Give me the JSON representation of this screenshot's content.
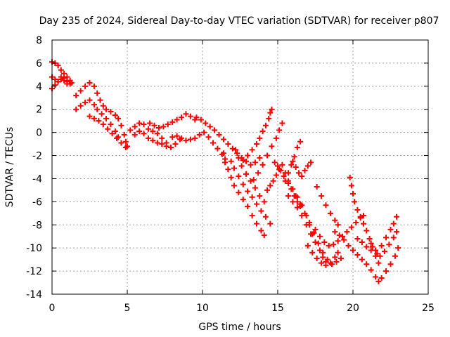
{
  "chart_data": {
    "type": "scatter",
    "title": "Day 235 of 2024, Sidereal Day-to-day VTEC variation (SDTVAR) for receiver p807",
    "xlabel": "GPS time / hours",
    "ylabel": "SDTVAR / TECUs",
    "xlim": [
      0,
      25
    ],
    "ylim": [
      -14,
      8
    ],
    "x_ticks": [
      0,
      5,
      10,
      15,
      20,
      25
    ],
    "y_ticks": [
      -14,
      -12,
      -10,
      -8,
      -6,
      -4,
      -2,
      0,
      2,
      4,
      6,
      8
    ],
    "grid": true,
    "marker": "plus",
    "color": "#ff0000",
    "series": [
      {
        "points": [
          [
            0.0,
            6.1
          ],
          [
            0.2,
            6.0
          ],
          [
            0.4,
            5.8
          ],
          [
            0.6,
            5.4
          ],
          [
            0.8,
            5.1
          ],
          [
            1.0,
            4.8
          ],
          [
            1.2,
            4.5
          ],
          [
            1.3,
            4.3
          ],
          [
            0.0,
            4.8
          ],
          [
            0.2,
            4.6
          ],
          [
            0.4,
            4.4
          ],
          [
            0.6,
            4.6
          ],
          [
            0.8,
            4.7
          ],
          [
            1.0,
            4.4
          ],
          [
            1.2,
            4.2
          ],
          [
            0.0,
            3.8
          ],
          [
            0.2,
            4.1
          ],
          [
            0.4,
            4.4
          ],
          [
            0.6,
            4.8
          ],
          [
            0.8,
            4.5
          ],
          [
            1.0,
            4.2
          ],
          [
            1.6,
            3.2
          ],
          [
            1.9,
            3.6
          ],
          [
            2.2,
            4.0
          ],
          [
            2.5,
            4.3
          ],
          [
            2.8,
            4.0
          ],
          [
            3.0,
            3.4
          ],
          [
            3.2,
            2.8
          ],
          [
            3.4,
            2.3
          ],
          [
            3.6,
            2.0
          ],
          [
            3.9,
            1.8
          ],
          [
            4.2,
            1.5
          ],
          [
            4.4,
            1.2
          ],
          [
            4.6,
            0.6
          ],
          [
            4.8,
            -0.2
          ],
          [
            4.9,
            -0.8
          ],
          [
            5.0,
            -1.2
          ],
          [
            1.6,
            2.0
          ],
          [
            1.9,
            2.3
          ],
          [
            2.2,
            2.6
          ],
          [
            2.5,
            2.8
          ],
          [
            2.8,
            2.4
          ],
          [
            3.0,
            2.0
          ],
          [
            3.3,
            1.6
          ],
          [
            3.6,
            1.2
          ],
          [
            3.9,
            0.7
          ],
          [
            4.2,
            0.1
          ],
          [
            4.4,
            -0.4
          ],
          [
            2.5,
            1.4
          ],
          [
            2.8,
            1.2
          ],
          [
            3.1,
            1.0
          ],
          [
            3.4,
            0.7
          ],
          [
            3.7,
            0.3
          ],
          [
            4.0,
            -0.1
          ],
          [
            4.3,
            -0.5
          ],
          [
            4.6,
            -0.9
          ],
          [
            4.9,
            -1.3
          ],
          [
            5.2,
            0.2
          ],
          [
            5.5,
            0.5
          ],
          [
            5.8,
            0.8
          ],
          [
            6.1,
            0.7
          ],
          [
            6.4,
            0.3
          ],
          [
            6.7,
            0.1
          ],
          [
            7.0,
            -0.1
          ],
          [
            7.3,
            -0.5
          ],
          [
            7.6,
            -0.9
          ],
          [
            7.9,
            -1.3
          ],
          [
            8.2,
            -1.0
          ],
          [
            8.5,
            -0.6
          ],
          [
            5.5,
            -0.2
          ],
          [
            5.8,
            0.1
          ],
          [
            6.1,
            -0.1
          ],
          [
            6.4,
            -0.5
          ],
          [
            6.7,
            -0.7
          ],
          [
            7.0,
            -0.9
          ],
          [
            7.3,
            -1.0
          ],
          [
            7.6,
            -1.2
          ],
          [
            6.5,
            0.8
          ],
          [
            6.8,
            0.6
          ],
          [
            7.1,
            0.4
          ],
          [
            7.4,
            0.5
          ],
          [
            7.7,
            0.7
          ],
          [
            8.0,
            0.9
          ],
          [
            8.3,
            1.1
          ],
          [
            8.6,
            1.3
          ],
          [
            8.9,
            1.6
          ],
          [
            9.2,
            1.4
          ],
          [
            9.5,
            1.1
          ],
          [
            8.0,
            -0.4
          ],
          [
            8.3,
            -0.3
          ],
          [
            8.6,
            -0.5
          ],
          [
            8.9,
            -0.7
          ],
          [
            9.2,
            -0.6
          ],
          [
            9.5,
            -0.5
          ],
          [
            9.8,
            -0.2
          ],
          [
            10.1,
            0.0
          ],
          [
            10.4,
            -0.4
          ],
          [
            10.7,
            -0.9
          ],
          [
            11.0,
            -1.4
          ],
          [
            11.3,
            -1.9
          ],
          [
            11.5,
            -2.3
          ],
          [
            9.6,
            1.3
          ],
          [
            9.9,
            1.1
          ],
          [
            10.2,
            0.8
          ],
          [
            10.5,
            0.5
          ],
          [
            10.8,
            0.2
          ],
          [
            11.1,
            -0.2
          ],
          [
            11.4,
            -0.6
          ],
          [
            11.7,
            -1.0
          ],
          [
            12.0,
            -1.4
          ],
          [
            12.3,
            -1.8
          ],
          [
            12.6,
            -2.2
          ],
          [
            12.9,
            -2.5
          ],
          [
            13.2,
            -2.8
          ],
          [
            13.5,
            -2.6
          ],
          [
            13.8,
            -2.2
          ],
          [
            11.4,
            -1.8
          ],
          [
            11.5,
            -2.6
          ],
          [
            11.7,
            -3.2
          ],
          [
            11.9,
            -3.9
          ],
          [
            12.1,
            -4.6
          ],
          [
            12.4,
            -5.2
          ],
          [
            12.7,
            -5.8
          ],
          [
            13.0,
            -6.4
          ],
          [
            13.3,
            -7.2
          ],
          [
            13.6,
            -7.9
          ],
          [
            13.9,
            -8.5
          ],
          [
            14.1,
            -8.9
          ],
          [
            11.9,
            -2.5
          ],
          [
            12.1,
            -3.1
          ],
          [
            12.4,
            -3.8
          ],
          [
            12.7,
            -4.5
          ],
          [
            13.0,
            -5.1
          ],
          [
            13.3,
            -5.6
          ],
          [
            13.6,
            -6.2
          ],
          [
            13.9,
            -6.8
          ],
          [
            14.2,
            -7.3
          ],
          [
            14.5,
            -7.9
          ],
          [
            12.2,
            -1.5
          ],
          [
            12.4,
            -2.2
          ],
          [
            12.6,
            -2.9
          ],
          [
            12.9,
            -3.6
          ],
          [
            13.2,
            -4.2
          ],
          [
            13.5,
            -4.8
          ],
          [
            13.8,
            -5.5
          ],
          [
            14.1,
            -6.0
          ],
          [
            12.7,
            -2.4
          ],
          [
            13.0,
            -2.0
          ],
          [
            13.3,
            -1.5
          ],
          [
            13.6,
            -1.0
          ],
          [
            13.8,
            -0.5
          ],
          [
            14.0,
            0.1
          ],
          [
            14.2,
            0.6
          ],
          [
            14.4,
            1.2
          ],
          [
            14.5,
            1.7
          ],
          [
            14.6,
            2.0
          ],
          [
            13.4,
            -4.1
          ],
          [
            13.7,
            -3.5
          ],
          [
            14.0,
            -2.8
          ],
          [
            14.3,
            -2.0
          ],
          [
            14.6,
            -1.2
          ],
          [
            14.9,
            -0.5
          ],
          [
            15.1,
            0.2
          ],
          [
            15.3,
            0.8
          ],
          [
            14.3,
            -5.0
          ],
          [
            14.5,
            -4.6
          ],
          [
            14.7,
            -4.2
          ],
          [
            14.9,
            -3.7
          ],
          [
            15.1,
            -3.2
          ],
          [
            15.3,
            -2.8
          ],
          [
            15.5,
            -3.5
          ],
          [
            15.7,
            -4.2
          ],
          [
            15.9,
            -4.9
          ],
          [
            16.1,
            -5.5
          ],
          [
            16.3,
            -6.0
          ],
          [
            16.5,
            -6.4
          ],
          [
            14.8,
            -2.6
          ],
          [
            15.0,
            -2.9
          ],
          [
            15.2,
            -3.3
          ],
          [
            15.4,
            -3.8
          ],
          [
            15.7,
            -4.4
          ],
          [
            16.0,
            -4.9
          ],
          [
            16.3,
            -5.6
          ],
          [
            16.6,
            -6.3
          ],
          [
            16.9,
            -7.2
          ],
          [
            17.1,
            -8.0
          ],
          [
            17.3,
            -8.8
          ],
          [
            15.5,
            -4.2
          ],
          [
            15.7,
            -3.5
          ],
          [
            15.9,
            -2.8
          ],
          [
            16.1,
            -2.1
          ],
          [
            16.3,
            -1.3
          ],
          [
            16.5,
            -0.8
          ],
          [
            16.0,
            -2.5
          ],
          [
            16.2,
            -3.0
          ],
          [
            16.4,
            -3.5
          ],
          [
            16.6,
            -3.8
          ],
          [
            16.8,
            -3.3
          ],
          [
            17.0,
            -2.9
          ],
          [
            17.2,
            -2.6
          ],
          [
            15.7,
            -5.5
          ],
          [
            16.0,
            -6.0
          ],
          [
            16.3,
            -6.5
          ],
          [
            16.6,
            -7.2
          ],
          [
            16.9,
            -8.0
          ],
          [
            17.2,
            -8.8
          ],
          [
            17.5,
            -9.5
          ],
          [
            17.8,
            -10.2
          ],
          [
            18.0,
            -10.8
          ],
          [
            18.2,
            -11.2
          ],
          [
            16.2,
            -5.5
          ],
          [
            16.5,
            -6.2
          ],
          [
            16.8,
            -7.0
          ],
          [
            17.1,
            -7.8
          ],
          [
            17.4,
            -8.7
          ],
          [
            17.7,
            -9.6
          ],
          [
            18.0,
            -10.4
          ],
          [
            18.3,
            -11.0
          ],
          [
            18.6,
            -11.4
          ],
          [
            18.9,
            -11.2
          ],
          [
            19.2,
            -10.9
          ],
          [
            17.0,
            -9.8
          ],
          [
            17.3,
            -10.4
          ],
          [
            17.6,
            -10.9
          ],
          [
            17.9,
            -11.3
          ],
          [
            18.2,
            -11.5
          ],
          [
            18.5,
            -11.3
          ],
          [
            18.8,
            -10.8
          ],
          [
            19.0,
            -10.4
          ],
          [
            17.5,
            -8.4
          ],
          [
            17.8,
            -9.0
          ],
          [
            18.1,
            -9.5
          ],
          [
            18.4,
            -9.8
          ],
          [
            18.7,
            -9.7
          ],
          [
            19.0,
            -9.4
          ],
          [
            19.3,
            -9.0
          ],
          [
            19.6,
            -8.6
          ],
          [
            19.9,
            -8.2
          ],
          [
            20.2,
            -7.8
          ],
          [
            20.5,
            -7.4
          ],
          [
            20.7,
            -7.2
          ],
          [
            17.6,
            -4.7
          ],
          [
            17.9,
            -5.5
          ],
          [
            18.2,
            -6.3
          ],
          [
            18.5,
            -7.0
          ],
          [
            18.8,
            -7.6
          ],
          [
            19.0,
            -8.0
          ],
          [
            18.8,
            -8.6
          ],
          [
            19.1,
            -8.9
          ],
          [
            19.4,
            -9.3
          ],
          [
            19.7,
            -9.8
          ],
          [
            20.0,
            -10.2
          ],
          [
            20.3,
            -10.6
          ],
          [
            20.6,
            -11.0
          ],
          [
            20.9,
            -11.4
          ],
          [
            21.2,
            -11.9
          ],
          [
            21.5,
            -12.5
          ],
          [
            21.7,
            -12.9
          ],
          [
            21.9,
            -12.6
          ],
          [
            22.2,
            -12.0
          ],
          [
            22.5,
            -11.4
          ],
          [
            22.8,
            -10.7
          ],
          [
            23.0,
            -10.0
          ],
          [
            19.8,
            -3.9
          ],
          [
            19.9,
            -4.6
          ],
          [
            20.0,
            -5.3
          ],
          [
            20.1,
            -6.0
          ],
          [
            20.3,
            -6.7
          ],
          [
            20.5,
            -7.3
          ],
          [
            20.7,
            -7.9
          ],
          [
            20.9,
            -8.5
          ],
          [
            21.1,
            -9.2
          ],
          [
            21.3,
            -9.9
          ],
          [
            21.5,
            -10.7
          ],
          [
            21.7,
            -11.3
          ],
          [
            21.2,
            -9.6
          ],
          [
            21.5,
            -10.2
          ],
          [
            21.8,
            -10.7
          ],
          [
            22.1,
            -10.3
          ],
          [
            22.4,
            -9.7
          ],
          [
            22.7,
            -9.1
          ],
          [
            22.9,
            -8.6
          ],
          [
            21.6,
            -10.5
          ],
          [
            21.9,
            -9.8
          ],
          [
            22.2,
            -9.1
          ],
          [
            22.5,
            -8.4
          ],
          [
            22.7,
            -7.9
          ],
          [
            22.9,
            -7.3
          ],
          [
            20.3,
            -9.2
          ],
          [
            20.6,
            -9.5
          ],
          [
            20.9,
            -9.9
          ],
          [
            21.2,
            -10.2
          ]
        ]
      }
    ]
  }
}
